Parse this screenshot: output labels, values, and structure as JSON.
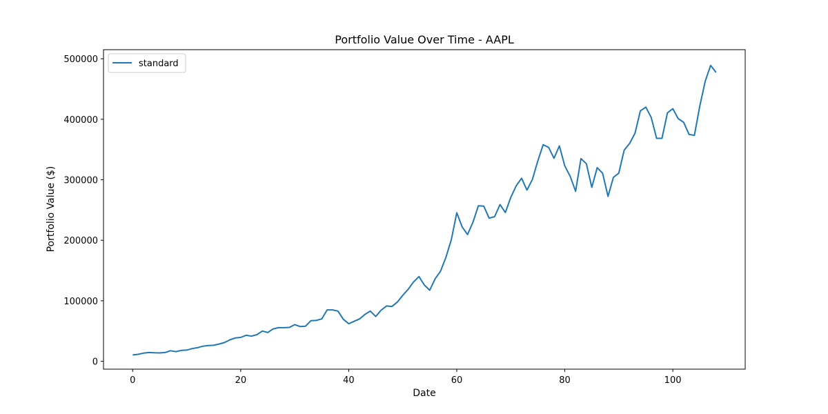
{
  "chart_data": {
    "type": "line",
    "title": "Portfolio Value Over Time - AAPL",
    "xlabel": "Date",
    "ylabel": "Portfolio Value ($)",
    "xlim": [
      -5.4,
      113.4
    ],
    "ylim": [
      -13000,
      515000
    ],
    "xticks": [
      0,
      20,
      40,
      60,
      80,
      100
    ],
    "yticks": [
      0,
      100000,
      200000,
      300000,
      400000,
      500000
    ],
    "legend_position": "top-left",
    "series": [
      {
        "name": "standard",
        "color": "#1f77b4",
        "x": [
          0,
          1,
          2,
          3,
          4,
          5,
          6,
          7,
          8,
          9,
          10,
          11,
          12,
          13,
          14,
          15,
          16,
          17,
          18,
          19,
          20,
          21,
          22,
          23,
          24,
          25,
          26,
          27,
          28,
          29,
          30,
          31,
          32,
          33,
          34,
          35,
          36,
          37,
          38,
          39,
          40,
          41,
          42,
          43,
          44,
          45,
          46,
          47,
          48,
          49,
          50,
          51,
          52,
          53,
          54,
          55,
          56,
          57,
          58,
          59,
          60,
          61,
          62,
          63,
          64,
          65,
          66,
          67,
          68,
          69,
          70,
          71,
          72,
          73,
          74,
          75,
          76,
          77,
          78,
          79,
          80,
          81,
          82,
          83,
          84,
          85,
          86,
          87,
          88,
          89,
          90,
          91,
          92,
          93,
          94,
          95,
          96,
          97,
          98,
          99,
          100,
          101,
          102,
          103,
          104,
          105,
          106,
          107,
          108
        ],
        "values": [
          10500,
          11500,
          13500,
          14500,
          14000,
          13800,
          14500,
          17500,
          16000,
          18000,
          18500,
          21000,
          22500,
          25000,
          26000,
          26500,
          28500,
          31000,
          35500,
          38500,
          39500,
          43000,
          41500,
          44000,
          50000,
          47500,
          53500,
          55500,
          55500,
          56000,
          60500,
          57500,
          58000,
          67000,
          67500,
          70000,
          85000,
          85000,
          83000,
          69500,
          62000,
          66000,
          70000,
          77500,
          83000,
          74000,
          84500,
          91500,
          90500,
          98000,
          109000,
          119000,
          131000,
          140000,
          126000,
          117500,
          136500,
          149000,
          172000,
          201000,
          245500,
          222000,
          209500,
          230000,
          257000,
          256500,
          236500,
          239000,
          259000,
          246000,
          271000,
          290000,
          302500,
          283000,
          300500,
          331000,
          358000,
          353500,
          335500,
          356000,
          323000,
          305500,
          281000,
          335000,
          326500,
          287500,
          320000,
          311000,
          272500,
          304000,
          311000,
          349000,
          360000,
          377000,
          414000,
          420000,
          403000,
          368500,
          368500,
          410500,
          417500,
          401000,
          395000,
          375000,
          373500,
          422000,
          463000,
          489000,
          477500
        ]
      }
    ]
  }
}
